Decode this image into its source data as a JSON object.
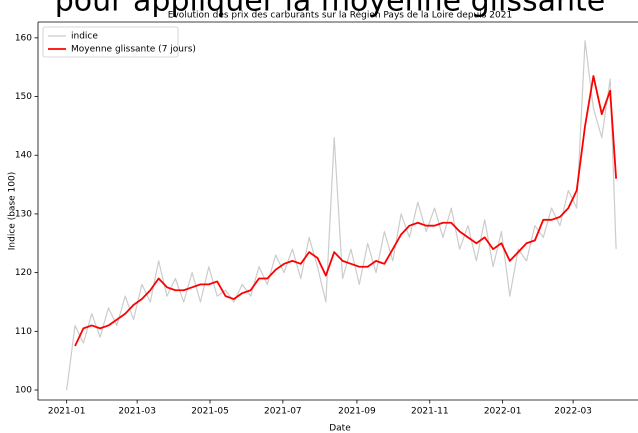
{
  "chart_data": {
    "type": "line",
    "heading": "pour appliquer la moyenne glissante",
    "title": "Evolution des prix des carburants sur la Région Pays de la Loire depuis 2021",
    "x_label": "Date",
    "y_label": "Indice (base 100)",
    "x": [
      "2021-01-01",
      "2021-01-08",
      "2021-01-15",
      "2021-01-22",
      "2021-01-29",
      "2021-02-05",
      "2021-02-12",
      "2021-02-19",
      "2021-02-26",
      "2021-03-05",
      "2021-03-12",
      "2021-03-19",
      "2021-03-26",
      "2021-04-02",
      "2021-04-09",
      "2021-04-16",
      "2021-04-23",
      "2021-04-30",
      "2021-05-07",
      "2021-05-14",
      "2021-05-21",
      "2021-05-28",
      "2021-06-04",
      "2021-06-11",
      "2021-06-18",
      "2021-06-25",
      "2021-07-02",
      "2021-07-09",
      "2021-07-16",
      "2021-07-23",
      "2021-07-30",
      "2021-08-06",
      "2021-08-13",
      "2021-08-20",
      "2021-08-27",
      "2021-09-03",
      "2021-09-10",
      "2021-09-17",
      "2021-09-24",
      "2021-10-01",
      "2021-10-08",
      "2021-10-15",
      "2021-10-22",
      "2021-10-29",
      "2021-11-05",
      "2021-11-12",
      "2021-11-19",
      "2021-11-26",
      "2021-12-03",
      "2021-12-10",
      "2021-12-17",
      "2021-12-24",
      "2021-12-31",
      "2022-01-07",
      "2022-01-14",
      "2022-01-21",
      "2022-01-28",
      "2022-02-04",
      "2022-02-11",
      "2022-02-18",
      "2022-02-25",
      "2022-03-04",
      "2022-03-11",
      "2022-03-18",
      "2022-03-25",
      "2022-04-01",
      "2022-04-06"
    ],
    "series": [
      {
        "name": "indice",
        "color": "#cccccc",
        "width": 1.2,
        "values": [
          100,
          111,
          108,
          113,
          109,
          114,
          111,
          116,
          112,
          118,
          115,
          122,
          116,
          119,
          115,
          120,
          115,
          121,
          116,
          117,
          115,
          118,
          116,
          121,
          118,
          123,
          120,
          124,
          119,
          126,
          121,
          115,
          143,
          119,
          124,
          118,
          125,
          120,
          127,
          122,
          130,
          126,
          132,
          127,
          131,
          126,
          131,
          124,
          128,
          122,
          129,
          121,
          127,
          116,
          124,
          122,
          128,
          126,
          131,
          128,
          134,
          131,
          159.5,
          148,
          143,
          153,
          124
        ]
      },
      {
        "name": "Moyenne glissante (7 jours)",
        "color": "#ff0000",
        "width": 1.8,
        "values": [
          null,
          107.5,
          110.5,
          111,
          110.5,
          111,
          112,
          113,
          114.5,
          115.5,
          117,
          119,
          117.5,
          117,
          117,
          117.5,
          118,
          118,
          118.5,
          116,
          115.5,
          116.5,
          117,
          119,
          119,
          120.5,
          121.5,
          122,
          121.5,
          123.5,
          122.5,
          119.5,
          123.5,
          122,
          121.5,
          121,
          121,
          122,
          121.5,
          124,
          126.5,
          128,
          128.5,
          128,
          128,
          128.5,
          128.5,
          127,
          126,
          125,
          126,
          124,
          125,
          122,
          123.5,
          125,
          125.5,
          129,
          129,
          129.5,
          131,
          134,
          145,
          153.5,
          147,
          151,
          136
        ]
      }
    ],
    "xlim": [
      "2020-12-08",
      "2022-04-26"
    ],
    "xticks": [
      {
        "value": "2021-01-01",
        "label": "2021-01"
      },
      {
        "value": "2021-03-01",
        "label": "2021-03"
      },
      {
        "value": "2021-05-01",
        "label": "2021-05"
      },
      {
        "value": "2021-07-01",
        "label": "2021-07"
      },
      {
        "value": "2021-09-01",
        "label": "2021-09"
      },
      {
        "value": "2021-11-01",
        "label": "2021-11"
      },
      {
        "value": "2022-01-01",
        "label": "2022-01"
      },
      {
        "value": "2022-03-01",
        "label": "2022-03"
      }
    ],
    "ylim": [
      98.3,
      162.7
    ],
    "yticks": [
      100,
      110,
      120,
      130,
      140,
      150,
      160
    ],
    "legend": "upper left",
    "grid": false
  }
}
